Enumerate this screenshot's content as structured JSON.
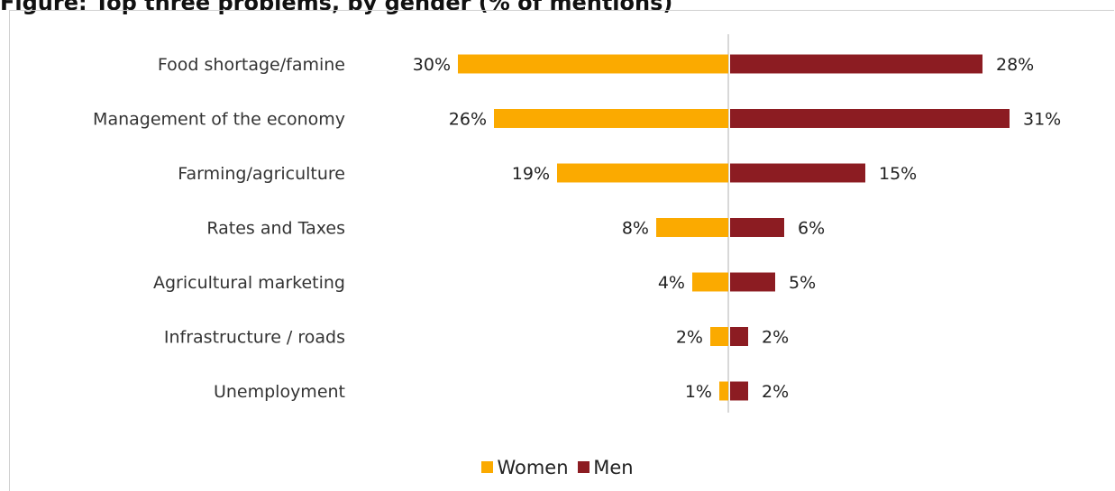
{
  "title": "Figure: Top three problems, by gender (% of mentions)",
  "colors": {
    "women": "#FBAA00",
    "men": "#8C1C22",
    "axis": "#cccccc"
  },
  "chart_data": {
    "type": "bar",
    "orientation": "horizontal-diverging",
    "categories": [
      "Food shortage/famine",
      "Management of the economy",
      "Farming/agriculture",
      "Rates and Taxes",
      "Agricultural marketing",
      "Infrastructure / roads",
      "Unemployment"
    ],
    "series": [
      {
        "name": "Women",
        "values": [
          30,
          26,
          19,
          8,
          4,
          2,
          1
        ],
        "labels": [
          "30%",
          "26%",
          "19%",
          "8%",
          "4%",
          "2%",
          "1%"
        ]
      },
      {
        "name": "Men",
        "values": [
          28,
          31,
          15,
          6,
          5,
          2,
          2
        ],
        "labels": [
          "28%",
          "31%",
          "15%",
          "6%",
          "5%",
          "2%",
          "2%"
        ]
      }
    ],
    "xlim": [
      -35,
      35
    ],
    "legend": "bottom",
    "grid": false
  }
}
